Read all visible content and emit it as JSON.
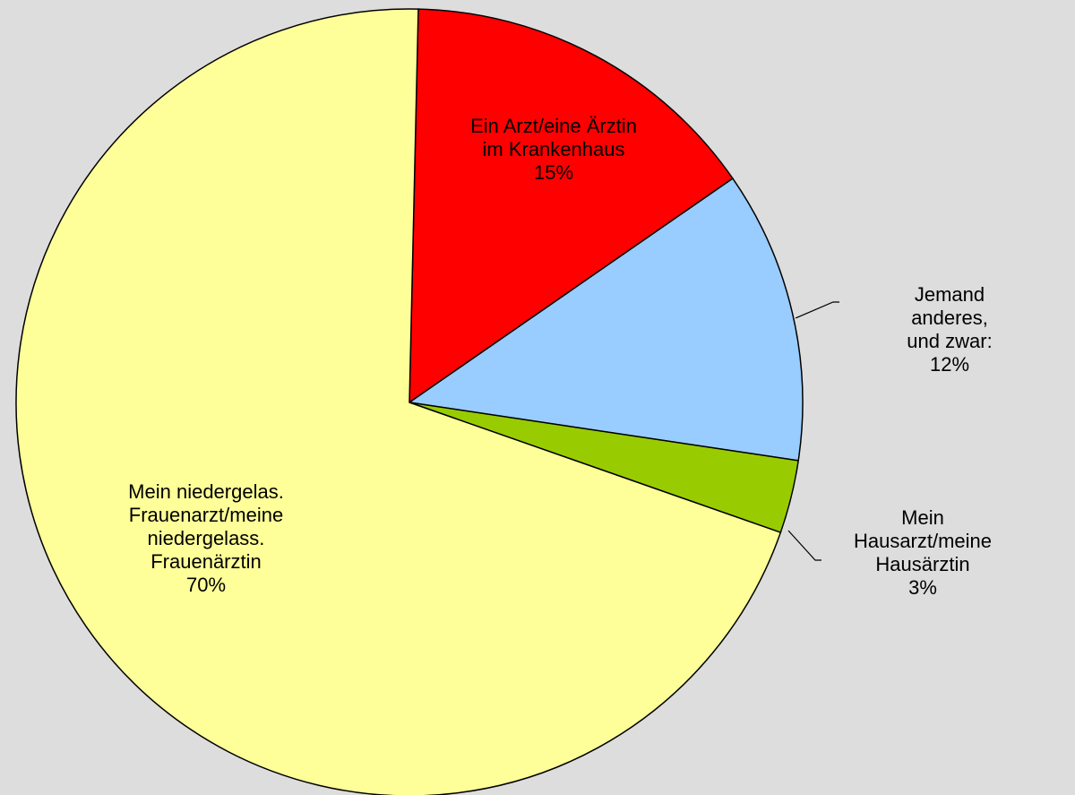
{
  "chart_data": {
    "type": "pie",
    "categories": [
      "Ein Arzt/eine Ärztin\nim Krankenhaus",
      "Jemand anderes,\nund zwar:",
      "Mein\nHausarzt/meine\nHausärztin",
      "Mein niedergelas.\nFrauenarzt/meine\nniedergelass.\nFrauenärztin"
    ],
    "values": [
      15,
      12,
      3,
      70
    ],
    "value_labels": [
      "15%",
      "12%",
      "3%",
      "70%"
    ],
    "colors": [
      "#ff0000",
      "#99ccff",
      "#99cc00",
      "#ffff99"
    ]
  }
}
